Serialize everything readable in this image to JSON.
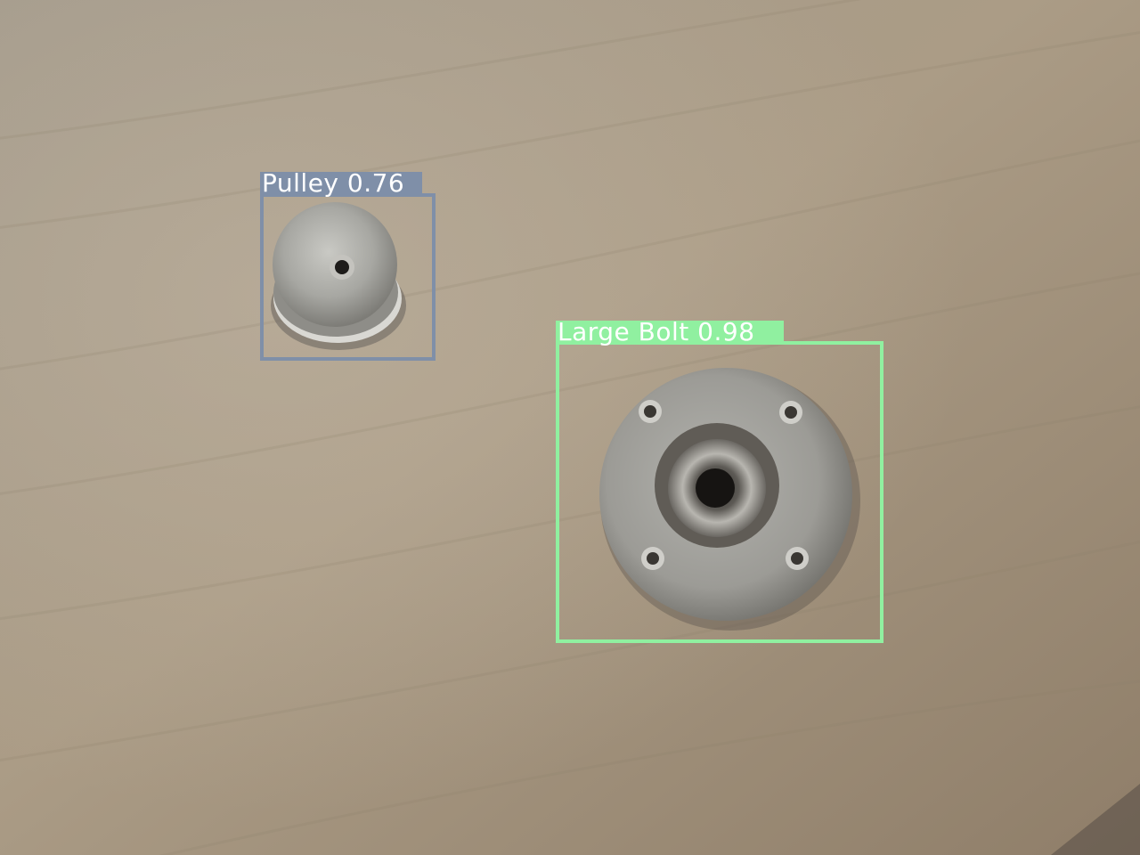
{
  "detections": [
    {
      "label": "Pulley",
      "confidence": "0.76",
      "color": "#7f8fa8"
    },
    {
      "label": "Large Bolt",
      "confidence": "0.98",
      "color": "#90f0a0"
    }
  ],
  "labels": {
    "pulley": "Pulley 0.76",
    "bolt": "Large Bolt 0.98"
  },
  "colors": {
    "table": "#a89a86",
    "pulley_box": "#7f8fa8",
    "bolt_box": "#90f0a0",
    "label_text": "#ffffff"
  }
}
